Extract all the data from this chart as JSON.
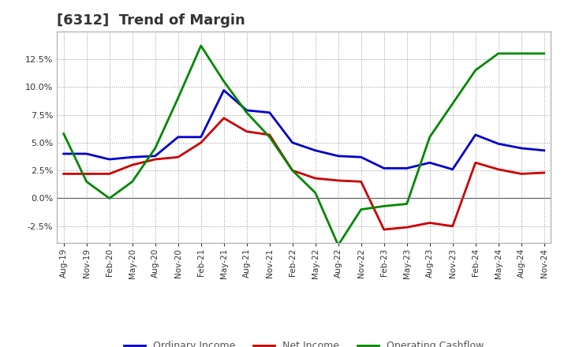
{
  "title": "[6312]  Trend of Margin",
  "x_labels": [
    "Aug-19",
    "Nov-19",
    "Feb-20",
    "May-20",
    "Aug-20",
    "Nov-20",
    "Feb-21",
    "May-21",
    "Aug-21",
    "Nov-21",
    "Feb-22",
    "May-22",
    "Aug-22",
    "Nov-22",
    "Feb-23",
    "May-23",
    "Aug-23",
    "Nov-23",
    "Feb-24",
    "May-24",
    "Aug-24",
    "Nov-24"
  ],
  "ordinary_income": [
    4.0,
    4.0,
    3.5,
    3.7,
    3.8,
    5.5,
    5.5,
    9.7,
    7.9,
    7.7,
    5.0,
    4.3,
    3.8,
    3.7,
    2.7,
    2.7,
    3.2,
    2.6,
    5.7,
    4.9,
    4.5,
    4.3
  ],
  "net_income": [
    2.2,
    2.2,
    2.2,
    3.0,
    3.5,
    3.7,
    5.0,
    7.2,
    6.0,
    5.7,
    2.5,
    1.8,
    1.6,
    1.5,
    -2.8,
    -2.6,
    -2.2,
    -2.5,
    3.2,
    2.6,
    2.2,
    2.3
  ],
  "operating_cashflow": [
    5.8,
    1.5,
    0.0,
    1.5,
    4.5,
    9.0,
    13.7,
    10.5,
    7.7,
    5.5,
    2.5,
    0.5,
    -4.2,
    -1.0,
    -0.7,
    -0.5,
    5.5,
    8.5,
    11.5,
    13.0,
    13.0,
    13.0
  ],
  "ylim": [
    -4.0,
    15.0
  ],
  "yticks": [
    -2.5,
    0.0,
    2.5,
    5.0,
    7.5,
    10.0,
    12.5
  ],
  "line_color_ordinary": "#0000cc",
  "line_color_net": "#cc0000",
  "line_color_cashflow": "#008800",
  "bg_color": "#ffffff",
  "plot_bg_color": "#ffffff",
  "grid_color": "#999999",
  "title_color": "#333333",
  "title_fontsize": 13,
  "legend_labels": [
    "Ordinary Income",
    "Net Income",
    "Operating Cashflow"
  ],
  "legend_color": "#555555"
}
